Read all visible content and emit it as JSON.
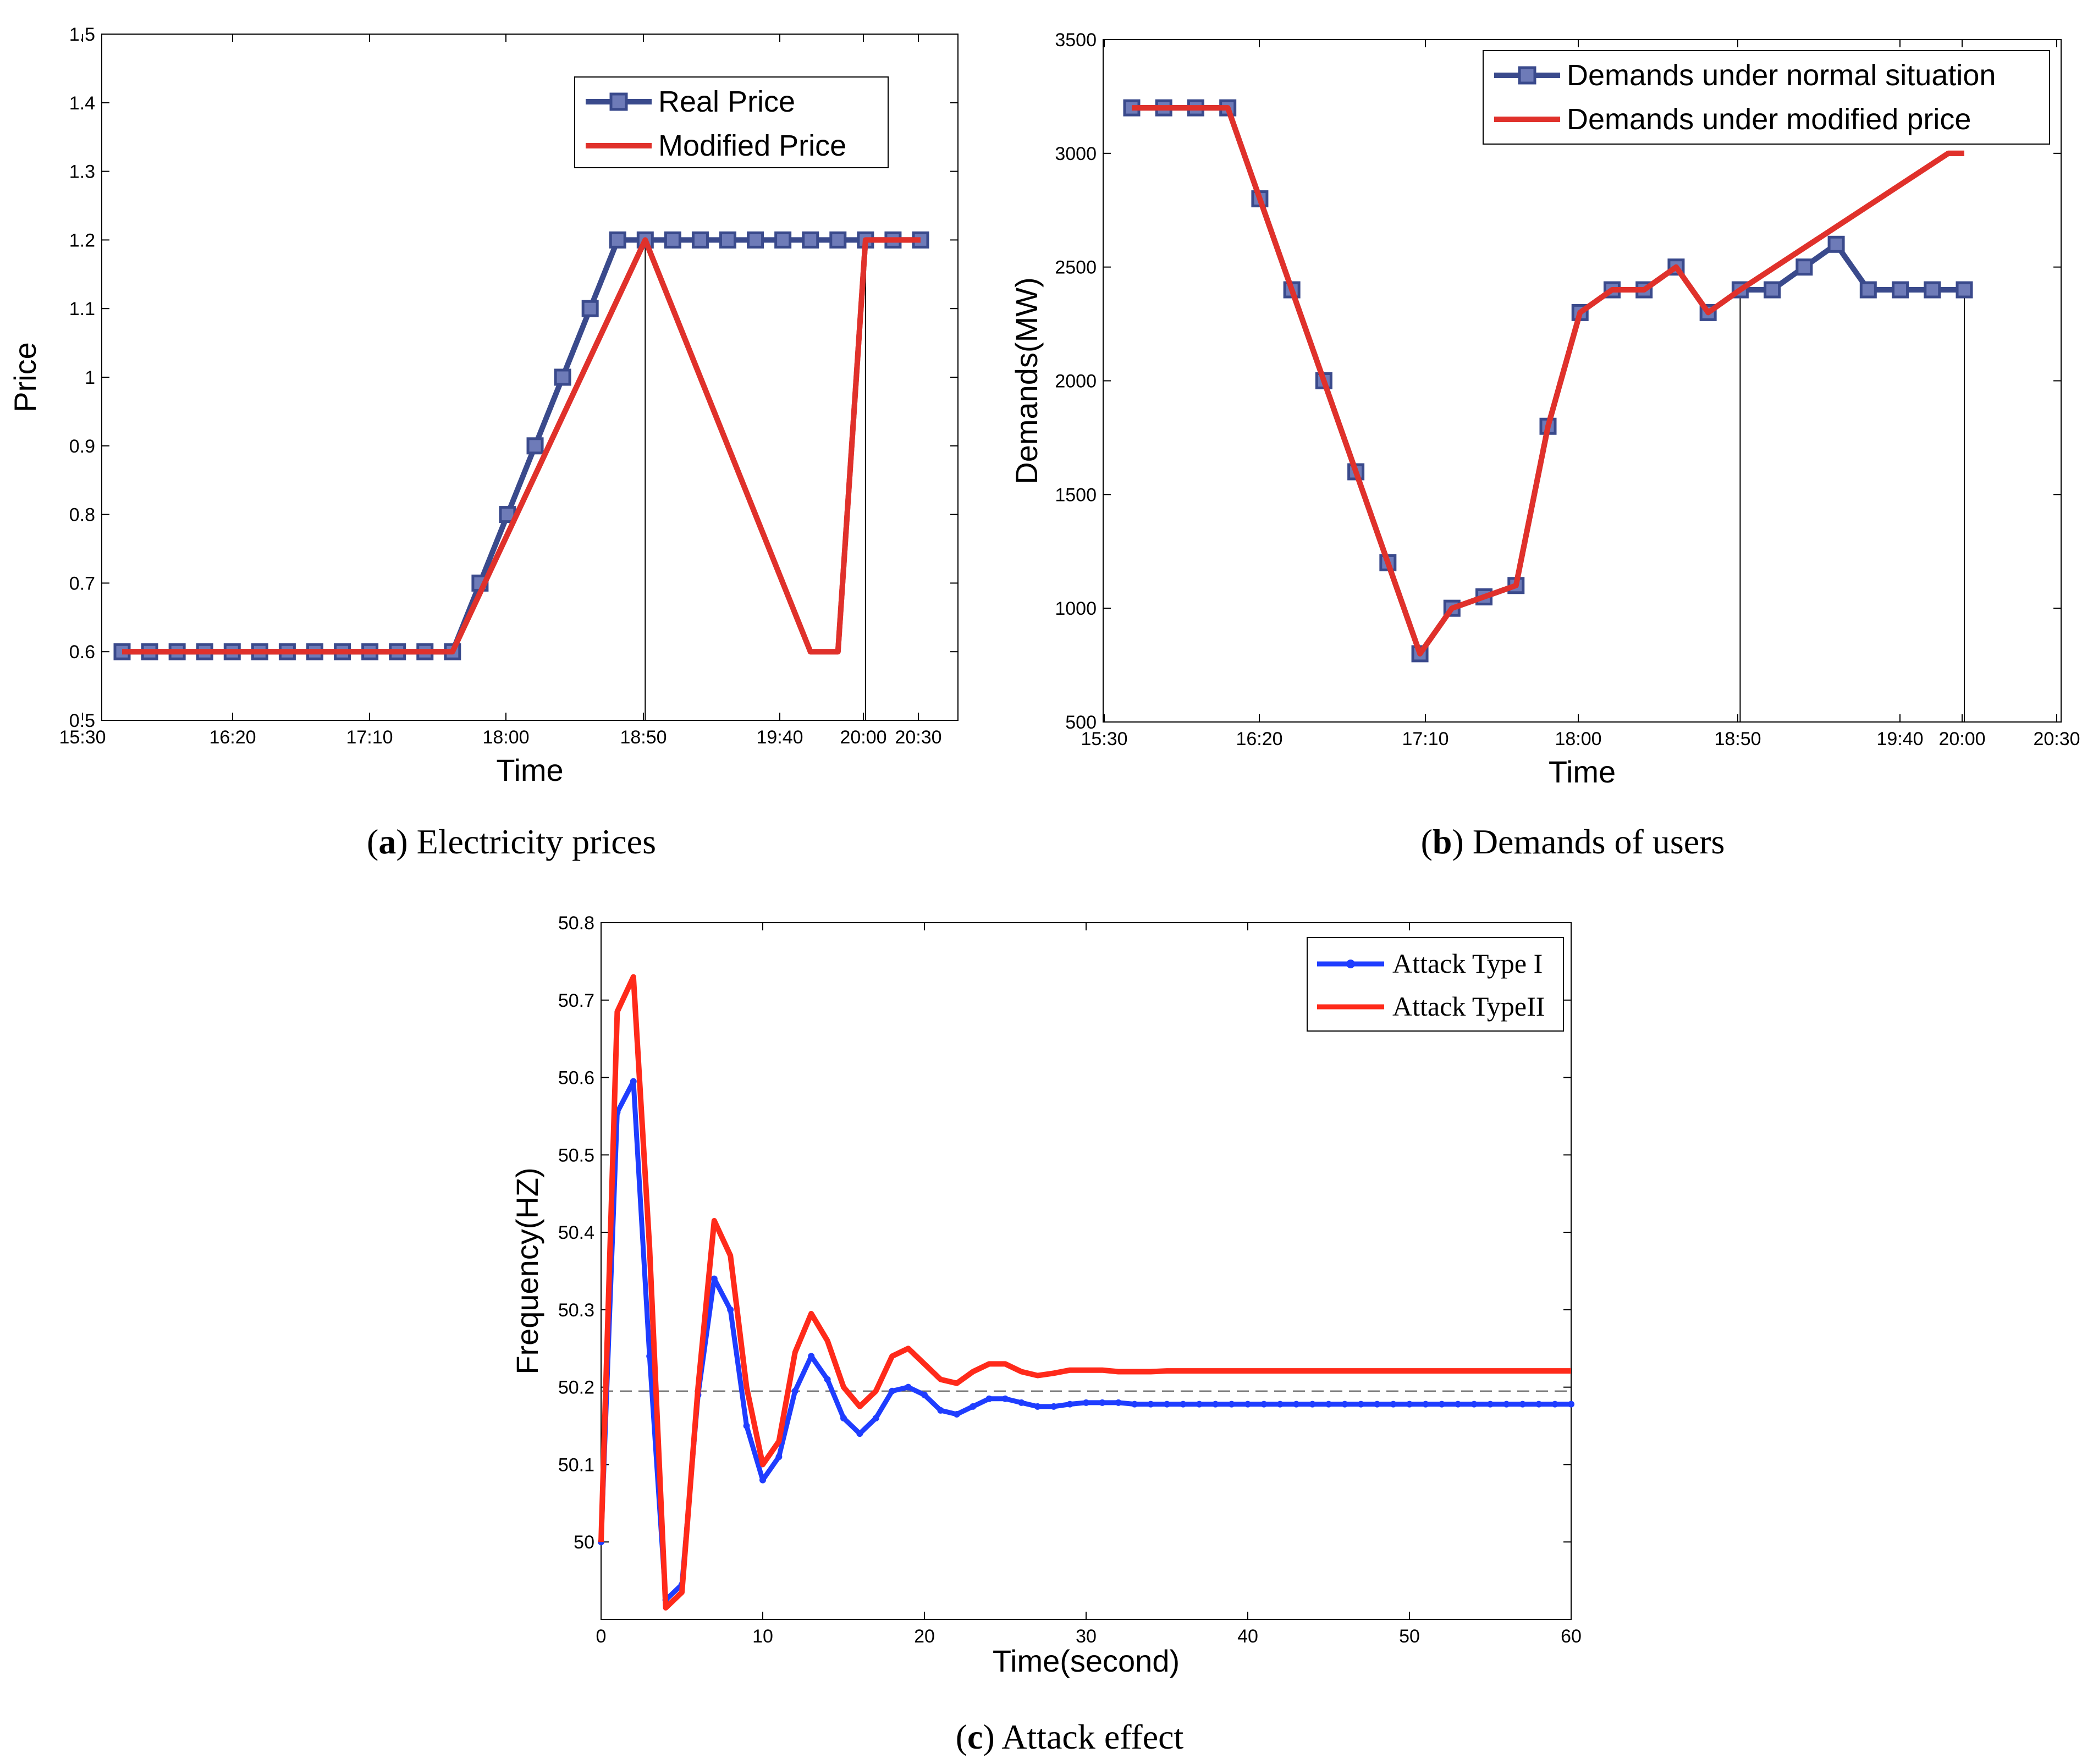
{
  "chart_data": [
    {
      "id": "a",
      "type": "line",
      "caption_letter": "a",
      "caption_text": "Electricity prices",
      "xlabel": "Time",
      "ylabel": "Price",
      "x_ticks": [
        "15:30",
        "16:20",
        "17:10",
        "18:00",
        "18:50",
        "19:40",
        "20:00",
        "20:30"
      ],
      "y_ticks": [
        "0.5",
        "0.6",
        "0.7",
        "0.8",
        "0.9",
        "1",
        "1.1",
        "1.2",
        "1.3",
        "1.4",
        "1.5"
      ],
      "ylim": [
        0.5,
        1.5
      ],
      "series": [
        {
          "name": "Real Price",
          "color": "#3A4A8C",
          "marker": "square",
          "x_min": [
            10,
            20,
            30,
            40,
            50,
            60,
            70,
            80,
            90,
            100,
            110,
            120,
            130,
            140,
            150,
            160,
            170,
            180,
            190,
            200,
            210,
            220,
            230,
            240,
            250,
            260,
            270,
            280,
            290,
            300
          ],
          "values": [
            0.6,
            0.6,
            0.6,
            0.6,
            0.6,
            0.6,
            0.6,
            0.6,
            0.6,
            0.6,
            0.6,
            0.6,
            0.6,
            0.7,
            0.8,
            0.9,
            1.0,
            1.1,
            1.2,
            1.2,
            1.2,
            1.2,
            1.2,
            1.2,
            1.2,
            1.2,
            1.2,
            1.2,
            1.2,
            1.2
          ]
        },
        {
          "name": "Modified Price",
          "color": "#E0312B",
          "marker": "none",
          "x_min": [
            10,
            130,
            200,
            260,
            270,
            280,
            300
          ],
          "values": [
            0.6,
            0.6,
            1.2,
            0.6,
            0.6,
            1.2,
            1.2
          ]
        }
      ],
      "vlines_min": [
        200,
        280
      ]
    },
    {
      "id": "b",
      "type": "line",
      "caption_letter": "b",
      "caption_text": "Demands of users",
      "xlabel": "Time",
      "ylabel": "Demands(MW)",
      "x_ticks": [
        "15:30",
        "16:20",
        "17:10",
        "18:00",
        "18:50",
        "19:40",
        "20:00",
        "20:30"
      ],
      "y_ticks": [
        "500",
        "1000",
        "1500",
        "2000",
        "2500",
        "3000",
        "3500"
      ],
      "ylim": [
        500,
        3500
      ],
      "series": [
        {
          "name": "Demands under normal situation",
          "color": "#3A4A8C",
          "marker": "square",
          "x_min": [
            10,
            20,
            30,
            40,
            50,
            60,
            70,
            80,
            90,
            100,
            110,
            120,
            130,
            140,
            150,
            160,
            170,
            180,
            190,
            200,
            210,
            220,
            230,
            240,
            250,
            260,
            270
          ],
          "values": [
            3200,
            3200,
            3200,
            3200,
            2800,
            2400,
            2000,
            1600,
            1200,
            800,
            1000,
            1050,
            1100,
            1800,
            2300,
            2400,
            2400,
            2500,
            2300,
            2400,
            2400,
            2500,
            2600,
            2400,
            2400,
            2400,
            2400
          ]
        },
        {
          "name": "Demands under modified price",
          "color": "#E0312B",
          "marker": "none",
          "x_min": [
            10,
            40,
            100,
            110,
            130,
            140,
            150,
            160,
            170,
            180,
            190,
            200,
            265,
            270
          ],
          "values": [
            3200,
            3200,
            800,
            1000,
            1100,
            1800,
            2300,
            2400,
            2400,
            2500,
            2300,
            2400,
            3000,
            3000
          ]
        }
      ],
      "vlines_min": [
        200,
        270
      ]
    },
    {
      "id": "c",
      "type": "line",
      "caption_letter": "c",
      "caption_text": "Attack effect",
      "xlabel": "Time(second)",
      "ylabel": "Frequency(HZ)",
      "x_ticks": [
        "0",
        "10",
        "20",
        "30",
        "40",
        "50",
        "60"
      ],
      "y_ticks": [
        "50",
        "50.1",
        "50.2",
        "50.3",
        "50.4",
        "50.5",
        "50.6",
        "50.7",
        "50.8"
      ],
      "xlim": [
        0,
        60
      ],
      "ylim": [
        49.9,
        50.8
      ],
      "dashed_ref": 50.195,
      "series": [
        {
          "name": "Attack Type I",
          "color": "#1F3DFF",
          "marker": "dot",
          "x": [
            0,
            1,
            2,
            3,
            4,
            5,
            6,
            7,
            8,
            9,
            10,
            11,
            12,
            13,
            14,
            15,
            16,
            17,
            18,
            19,
            20,
            21,
            22,
            23,
            24,
            25,
            26,
            27,
            28,
            29,
            30,
            31,
            32,
            33,
            34,
            35,
            36,
            37,
            38,
            39,
            40,
            41,
            42,
            43,
            44,
            45,
            46,
            47,
            48,
            49,
            50,
            51,
            52,
            53,
            54,
            55,
            56,
            57,
            58,
            59,
            60
          ],
          "values": [
            50.0,
            50.555,
            50.595,
            50.24,
            49.925,
            49.945,
            50.19,
            50.34,
            50.3,
            50.15,
            50.08,
            50.11,
            50.195,
            50.24,
            50.21,
            50.16,
            50.14,
            50.16,
            50.195,
            50.2,
            50.19,
            50.17,
            50.165,
            50.175,
            50.185,
            50.185,
            50.18,
            50.175,
            50.175,
            50.178,
            50.18,
            50.18,
            50.18,
            50.178,
            50.178,
            50.178,
            50.178,
            50.178,
            50.178,
            50.178,
            50.178,
            50.178,
            50.178,
            50.178,
            50.178,
            50.178,
            50.178,
            50.178,
            50.178,
            50.178,
            50.178,
            50.178,
            50.178,
            50.178,
            50.178,
            50.178,
            50.178,
            50.178,
            50.178,
            50.178,
            50.178
          ]
        },
        {
          "name": "Attack TypeII",
          "color": "#FF2A1A",
          "marker": "none",
          "x": [
            0,
            1,
            2,
            3,
            4,
            5,
            6,
            7,
            8,
            9,
            10,
            11,
            12,
            13,
            14,
            15,
            16,
            17,
            18,
            19,
            20,
            21,
            22,
            23,
            24,
            25,
            26,
            27,
            28,
            29,
            30,
            31,
            32,
            33,
            34,
            35,
            36,
            40,
            45,
            50,
            55,
            60
          ],
          "values": [
            50.0,
            50.685,
            50.73,
            50.38,
            49.915,
            49.935,
            50.2,
            50.415,
            50.37,
            50.2,
            50.1,
            50.13,
            50.245,
            50.295,
            50.26,
            50.2,
            50.175,
            50.195,
            50.24,
            50.25,
            50.23,
            50.21,
            50.205,
            50.22,
            50.23,
            50.23,
            50.22,
            50.215,
            50.218,
            50.222,
            50.222,
            50.222,
            50.22,
            50.22,
            50.22,
            50.221,
            50.221,
            50.221,
            50.221,
            50.221,
            50.221,
            50.221
          ]
        }
      ]
    }
  ]
}
